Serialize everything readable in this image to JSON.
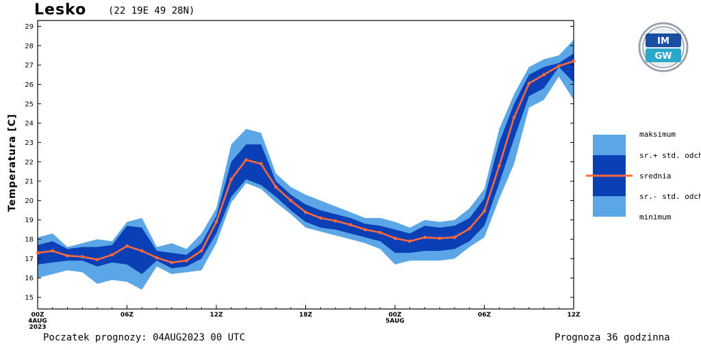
{
  "header": {
    "station": "Lesko",
    "coords": "(22 19E 49 28N)"
  },
  "footer": {
    "start": "Poczatek prognozy: 04AUG2023 00 UTC",
    "range": "Prognoza 36 godzinna"
  },
  "logo": {
    "text_top": "IM",
    "text_bottom": "GW"
  },
  "colors": {
    "outer_band": "#5aa6e6",
    "inner_band": "#0a3fb5",
    "mean_line": "#ff6a3d",
    "border": "#000000"
  },
  "legend": {
    "max": "maksimum",
    "plus_std": "sr.+ std. odch.",
    "mean": "srednia",
    "minus_std": "sr.- std. odch.",
    "min": "minimum"
  },
  "chart_data": {
    "type": "area",
    "ylabel": "Temperatura [C]",
    "ylim": [
      14.4,
      29.3
    ],
    "yticks": [
      "15",
      "16",
      "17",
      "18",
      "19",
      "20",
      "21",
      "22",
      "23",
      "24",
      "25",
      "26",
      "27",
      "28",
      "29"
    ],
    "xlim": [
      0,
      36
    ],
    "xticks": [
      {
        "x": 0,
        "label": "00Z",
        "sub": "4AUG",
        "sub2": "2023"
      },
      {
        "x": 6,
        "label": "06Z",
        "sub": "",
        "sub2": ""
      },
      {
        "x": 12,
        "label": "12Z",
        "sub": "",
        "sub2": ""
      },
      {
        "x": 18,
        "label": "18Z",
        "sub": "",
        "sub2": ""
      },
      {
        "x": 24,
        "label": "00Z",
        "sub": "5AUG",
        "sub2": ""
      },
      {
        "x": 30,
        "label": "06Z",
        "sub": "",
        "sub2": ""
      },
      {
        "x": 36,
        "label": "12Z",
        "sub": "",
        "sub2": ""
      }
    ],
    "x": [
      0,
      1,
      2,
      3,
      4,
      5,
      6,
      7,
      8,
      9,
      10,
      11,
      12,
      13,
      14,
      15,
      16,
      17,
      18,
      19,
      20,
      21,
      22,
      23,
      24,
      25,
      26,
      27,
      28,
      29,
      30,
      31,
      32,
      33,
      34,
      35,
      36
    ],
    "series": [
      {
        "name": "maksimum",
        "values": [
          18.1,
          18.3,
          17.6,
          17.8,
          18.0,
          17.9,
          18.9,
          19.1,
          17.6,
          17.8,
          17.5,
          18.3,
          19.6,
          22.9,
          23.7,
          23.5,
          21.4,
          20.7,
          20.3,
          20.0,
          19.7,
          19.4,
          19.1,
          19.1,
          18.9,
          18.6,
          19.0,
          18.9,
          19.0,
          19.6,
          20.6,
          23.7,
          25.5,
          26.9,
          27.3,
          27.5,
          28.3
        ]
      },
      {
        "name": "sr.+ std. odch.",
        "values": [
          17.7,
          17.9,
          17.5,
          17.6,
          17.6,
          17.7,
          18.7,
          18.6,
          17.4,
          17.3,
          17.2,
          17.8,
          19.2,
          22.0,
          22.9,
          22.9,
          21.0,
          20.3,
          19.8,
          19.5,
          19.3,
          19.1,
          18.8,
          18.7,
          18.5,
          18.3,
          18.7,
          18.6,
          18.7,
          19.1,
          20.1,
          23.0,
          25.0,
          26.5,
          26.9,
          27.1,
          27.6
        ]
      },
      {
        "name": "srednia",
        "values": [
          17.3,
          17.4,
          17.15,
          17.1,
          16.95,
          17.2,
          17.65,
          17.4,
          17.05,
          16.8,
          16.9,
          17.4,
          18.9,
          21.1,
          22.1,
          21.9,
          20.7,
          20.0,
          19.4,
          19.1,
          18.95,
          18.75,
          18.5,
          18.35,
          18.05,
          17.9,
          18.1,
          18.05,
          18.1,
          18.55,
          19.45,
          21.8,
          24.3,
          26.05,
          26.5,
          26.95,
          27.2
        ]
      },
      {
        "name": "sr.- std. odch.",
        "values": [
          16.7,
          16.8,
          16.9,
          16.9,
          16.6,
          16.8,
          16.7,
          16.2,
          16.9,
          16.5,
          16.6,
          17.0,
          18.3,
          20.2,
          21.1,
          20.8,
          20.2,
          19.5,
          18.9,
          18.6,
          18.5,
          18.3,
          18.1,
          17.9,
          17.3,
          17.3,
          17.4,
          17.4,
          17.5,
          17.9,
          18.7,
          20.9,
          23.2,
          25.4,
          25.8,
          26.9,
          26.1
        ]
      },
      {
        "name": "minimum",
        "values": [
          16.0,
          16.2,
          16.4,
          16.3,
          15.7,
          15.9,
          15.8,
          15.4,
          16.6,
          16.2,
          16.3,
          16.4,
          17.8,
          19.9,
          20.9,
          20.6,
          19.9,
          19.3,
          18.6,
          18.4,
          18.2,
          18.0,
          17.8,
          17.5,
          16.7,
          16.9,
          16.9,
          16.9,
          17.0,
          17.6,
          18.1,
          20.1,
          21.9,
          24.8,
          25.2,
          26.4,
          25.2
        ]
      }
    ]
  }
}
